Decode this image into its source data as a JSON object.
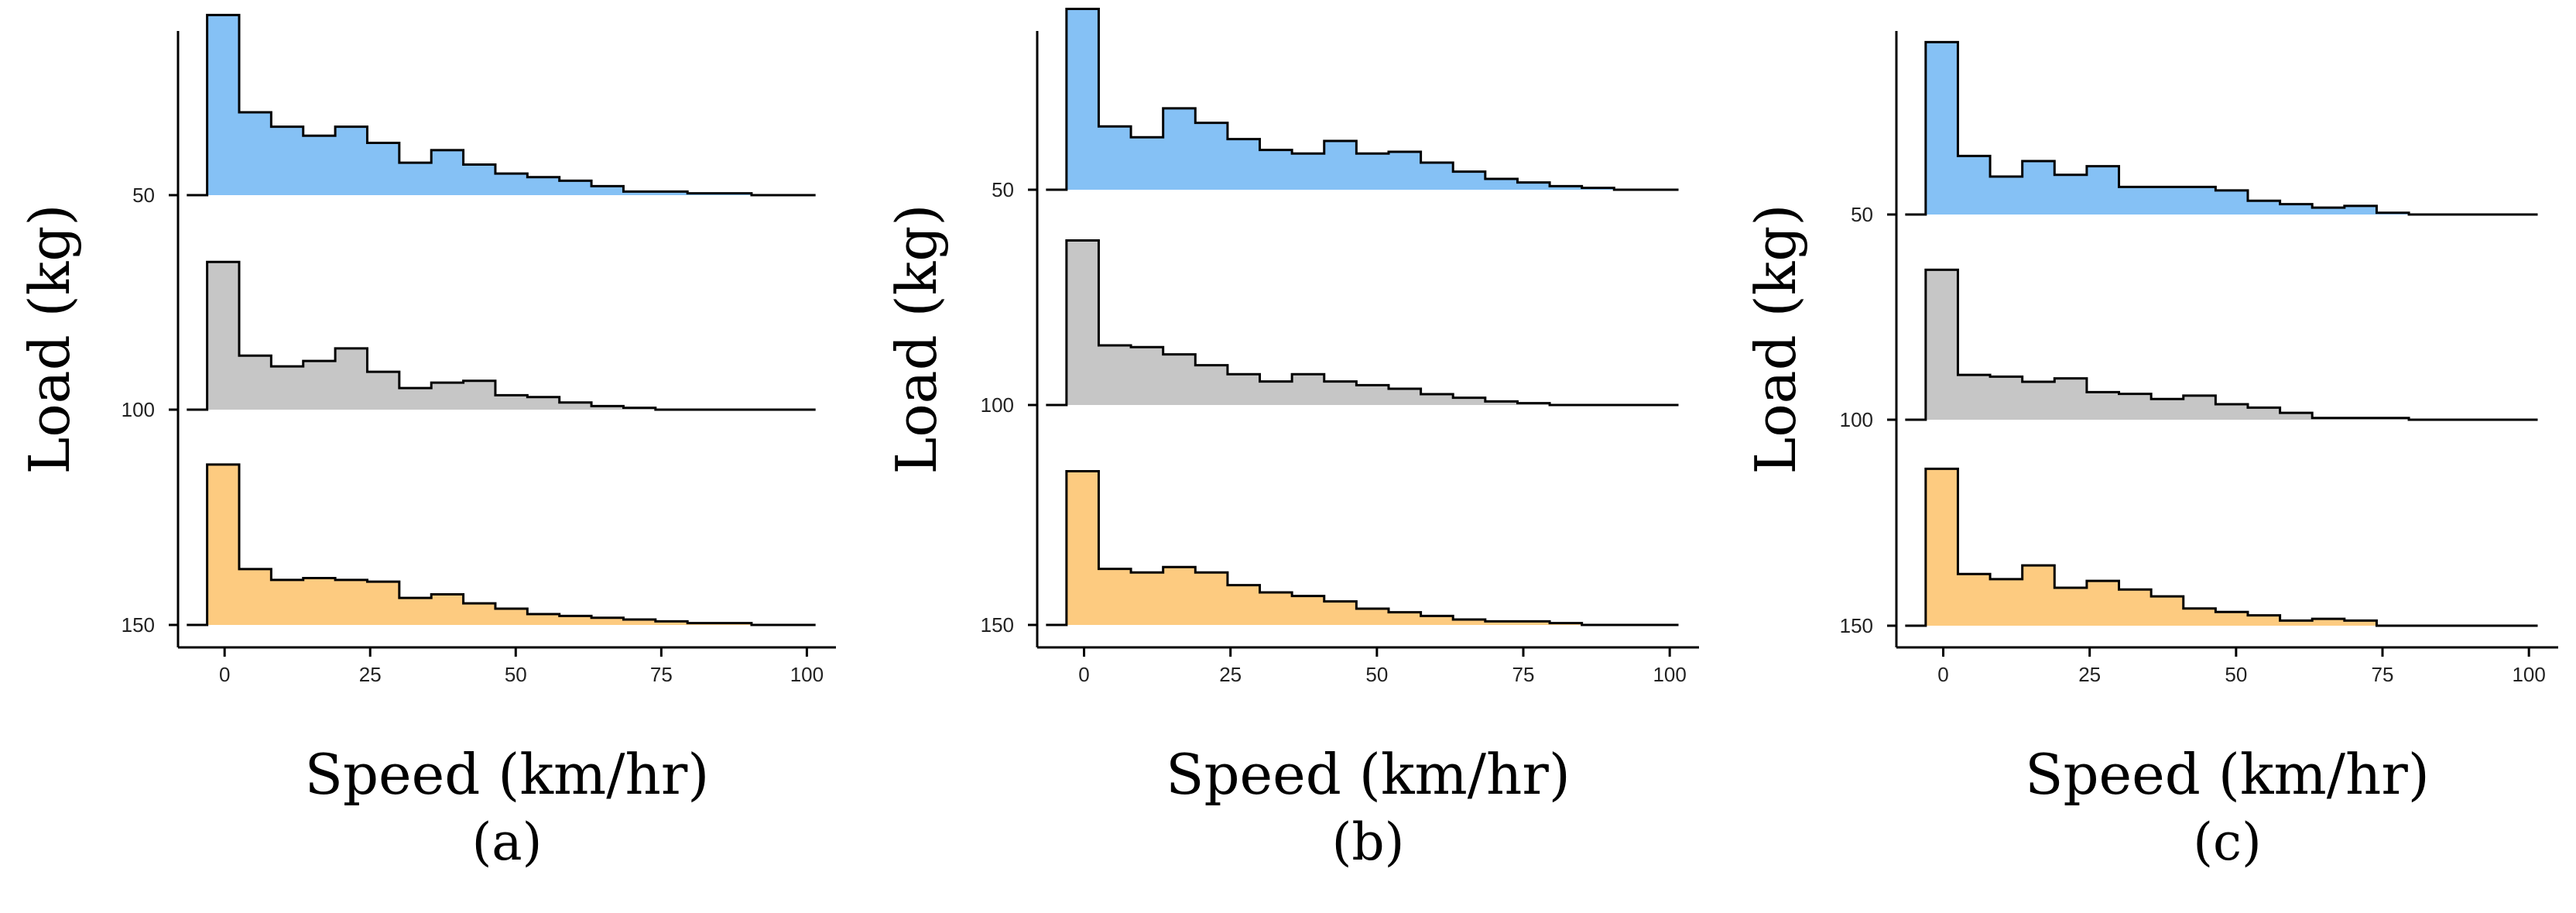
{
  "chart_data": [
    {
      "type": "ridgeline-histogram",
      "panel_label": "(a)",
      "xlabel": "Speed (km/hr)",
      "ylabel": "Load (kg)",
      "xlim": [
        -8,
        105
      ],
      "x_ticks": [
        0,
        25,
        50,
        75,
        100
      ],
      "y_ticks": [
        50,
        100,
        150
      ],
      "bin_width": 5.5,
      "bin_start": -3,
      "series": [
        {
          "name": "50",
          "color": "#85C1F5",
          "values": [
            1.0,
            0.46,
            0.38,
            0.33,
            0.38,
            0.29,
            0.18,
            0.25,
            0.17,
            0.12,
            0.1,
            0.08,
            0.05,
            0.02,
            0.02,
            0.01,
            0.01,
            0.0,
            0.0
          ]
        },
        {
          "name": "100",
          "color": "#C6C6C6",
          "values": [
            0.82,
            0.3,
            0.24,
            0.27,
            0.34,
            0.21,
            0.12,
            0.15,
            0.16,
            0.08,
            0.07,
            0.04,
            0.02,
            0.01,
            0.0,
            0.0,
            0.0,
            0.0,
            0.0
          ]
        },
        {
          "name": "150",
          "color": "#FDCB80",
          "values": [
            0.89,
            0.31,
            0.25,
            0.26,
            0.25,
            0.24,
            0.15,
            0.17,
            0.12,
            0.09,
            0.06,
            0.05,
            0.04,
            0.03,
            0.02,
            0.01,
            0.01,
            0.0,
            0.0
          ]
        }
      ]
    },
    {
      "type": "ridgeline-histogram",
      "panel_label": "(b)",
      "xlabel": "Speed (km/hr)",
      "ylabel": "Load (kg)",
      "xlim": [
        -8,
        105
      ],
      "x_ticks": [
        0,
        25,
        50,
        75,
        100
      ],
      "y_ticks": [
        50,
        100,
        150
      ],
      "bin_width": 5.5,
      "bin_start": -3,
      "series": [
        {
          "name": "50",
          "color": "#85C1F5",
          "values": [
            1.0,
            0.35,
            0.29,
            0.45,
            0.37,
            0.28,
            0.22,
            0.2,
            0.27,
            0.2,
            0.21,
            0.15,
            0.1,
            0.06,
            0.04,
            0.02,
            0.01,
            0.0,
            0.0
          ]
        },
        {
          "name": "100",
          "color": "#C6C6C6",
          "values": [
            0.91,
            0.33,
            0.32,
            0.28,
            0.22,
            0.17,
            0.13,
            0.17,
            0.13,
            0.11,
            0.09,
            0.06,
            0.04,
            0.02,
            0.01,
            0.0,
            0.0,
            0.0,
            0.0
          ]
        },
        {
          "name": "150",
          "color": "#FDCB80",
          "values": [
            0.85,
            0.31,
            0.29,
            0.32,
            0.29,
            0.22,
            0.18,
            0.16,
            0.13,
            0.09,
            0.07,
            0.05,
            0.03,
            0.02,
            0.02,
            0.01,
            0.0,
            0.0,
            0.0
          ]
        }
      ]
    },
    {
      "type": "ridgeline-histogram",
      "panel_label": "(c)",
      "xlabel": "Speed (km/hr)",
      "ylabel": "Load (kg)",
      "xlim": [
        -8,
        105
      ],
      "x_ticks": [
        0,
        25,
        50,
        75,
        100
      ],
      "y_ticks": [
        50,
        100,
        150
      ],
      "bin_width": 5.5,
      "bin_start": -3,
      "series": [
        {
          "name": "50",
          "color": "#85C1F5",
          "values": [
            1.0,
            0.34,
            0.22,
            0.31,
            0.23,
            0.28,
            0.16,
            0.16,
            0.16,
            0.14,
            0.08,
            0.06,
            0.04,
            0.05,
            0.01,
            0.0,
            0.0,
            0.0,
            0.0
          ]
        },
        {
          "name": "100",
          "color": "#C6C6C6",
          "values": [
            0.87,
            0.26,
            0.25,
            0.22,
            0.24,
            0.16,
            0.15,
            0.12,
            0.14,
            0.09,
            0.07,
            0.04,
            0.01,
            0.01,
            0.01,
            0.0,
            0.0,
            0.0,
            0.0
          ]
        },
        {
          "name": "150",
          "color": "#FDCB80",
          "values": [
            0.91,
            0.3,
            0.27,
            0.35,
            0.22,
            0.26,
            0.21,
            0.17,
            0.1,
            0.08,
            0.06,
            0.03,
            0.04,
            0.03,
            0.0,
            0.0,
            0.0,
            0.0,
            0.0
          ]
        }
      ]
    }
  ]
}
